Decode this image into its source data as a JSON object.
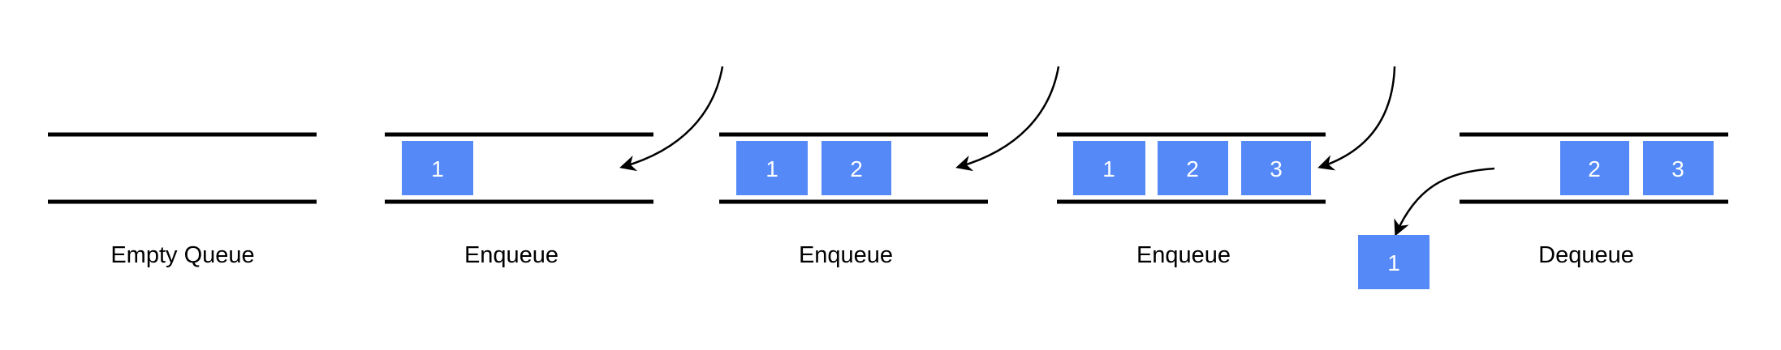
{
  "colors": {
    "item_fill": "#5589f7",
    "item_text": "#ffffff",
    "rail": "#000000",
    "arrow": "#000000"
  },
  "stages": [
    {
      "caption": "Empty Queue",
      "items": []
    },
    {
      "caption": "Enqueue",
      "items": [
        "1"
      ]
    },
    {
      "caption": "Enqueue",
      "items": [
        "1",
        "2"
      ]
    },
    {
      "caption": "Enqueue",
      "items": [
        "1",
        "2",
        "3"
      ]
    },
    {
      "caption": "Dequeue",
      "items": [
        "2",
        "3"
      ],
      "removed_item": "1"
    }
  ]
}
